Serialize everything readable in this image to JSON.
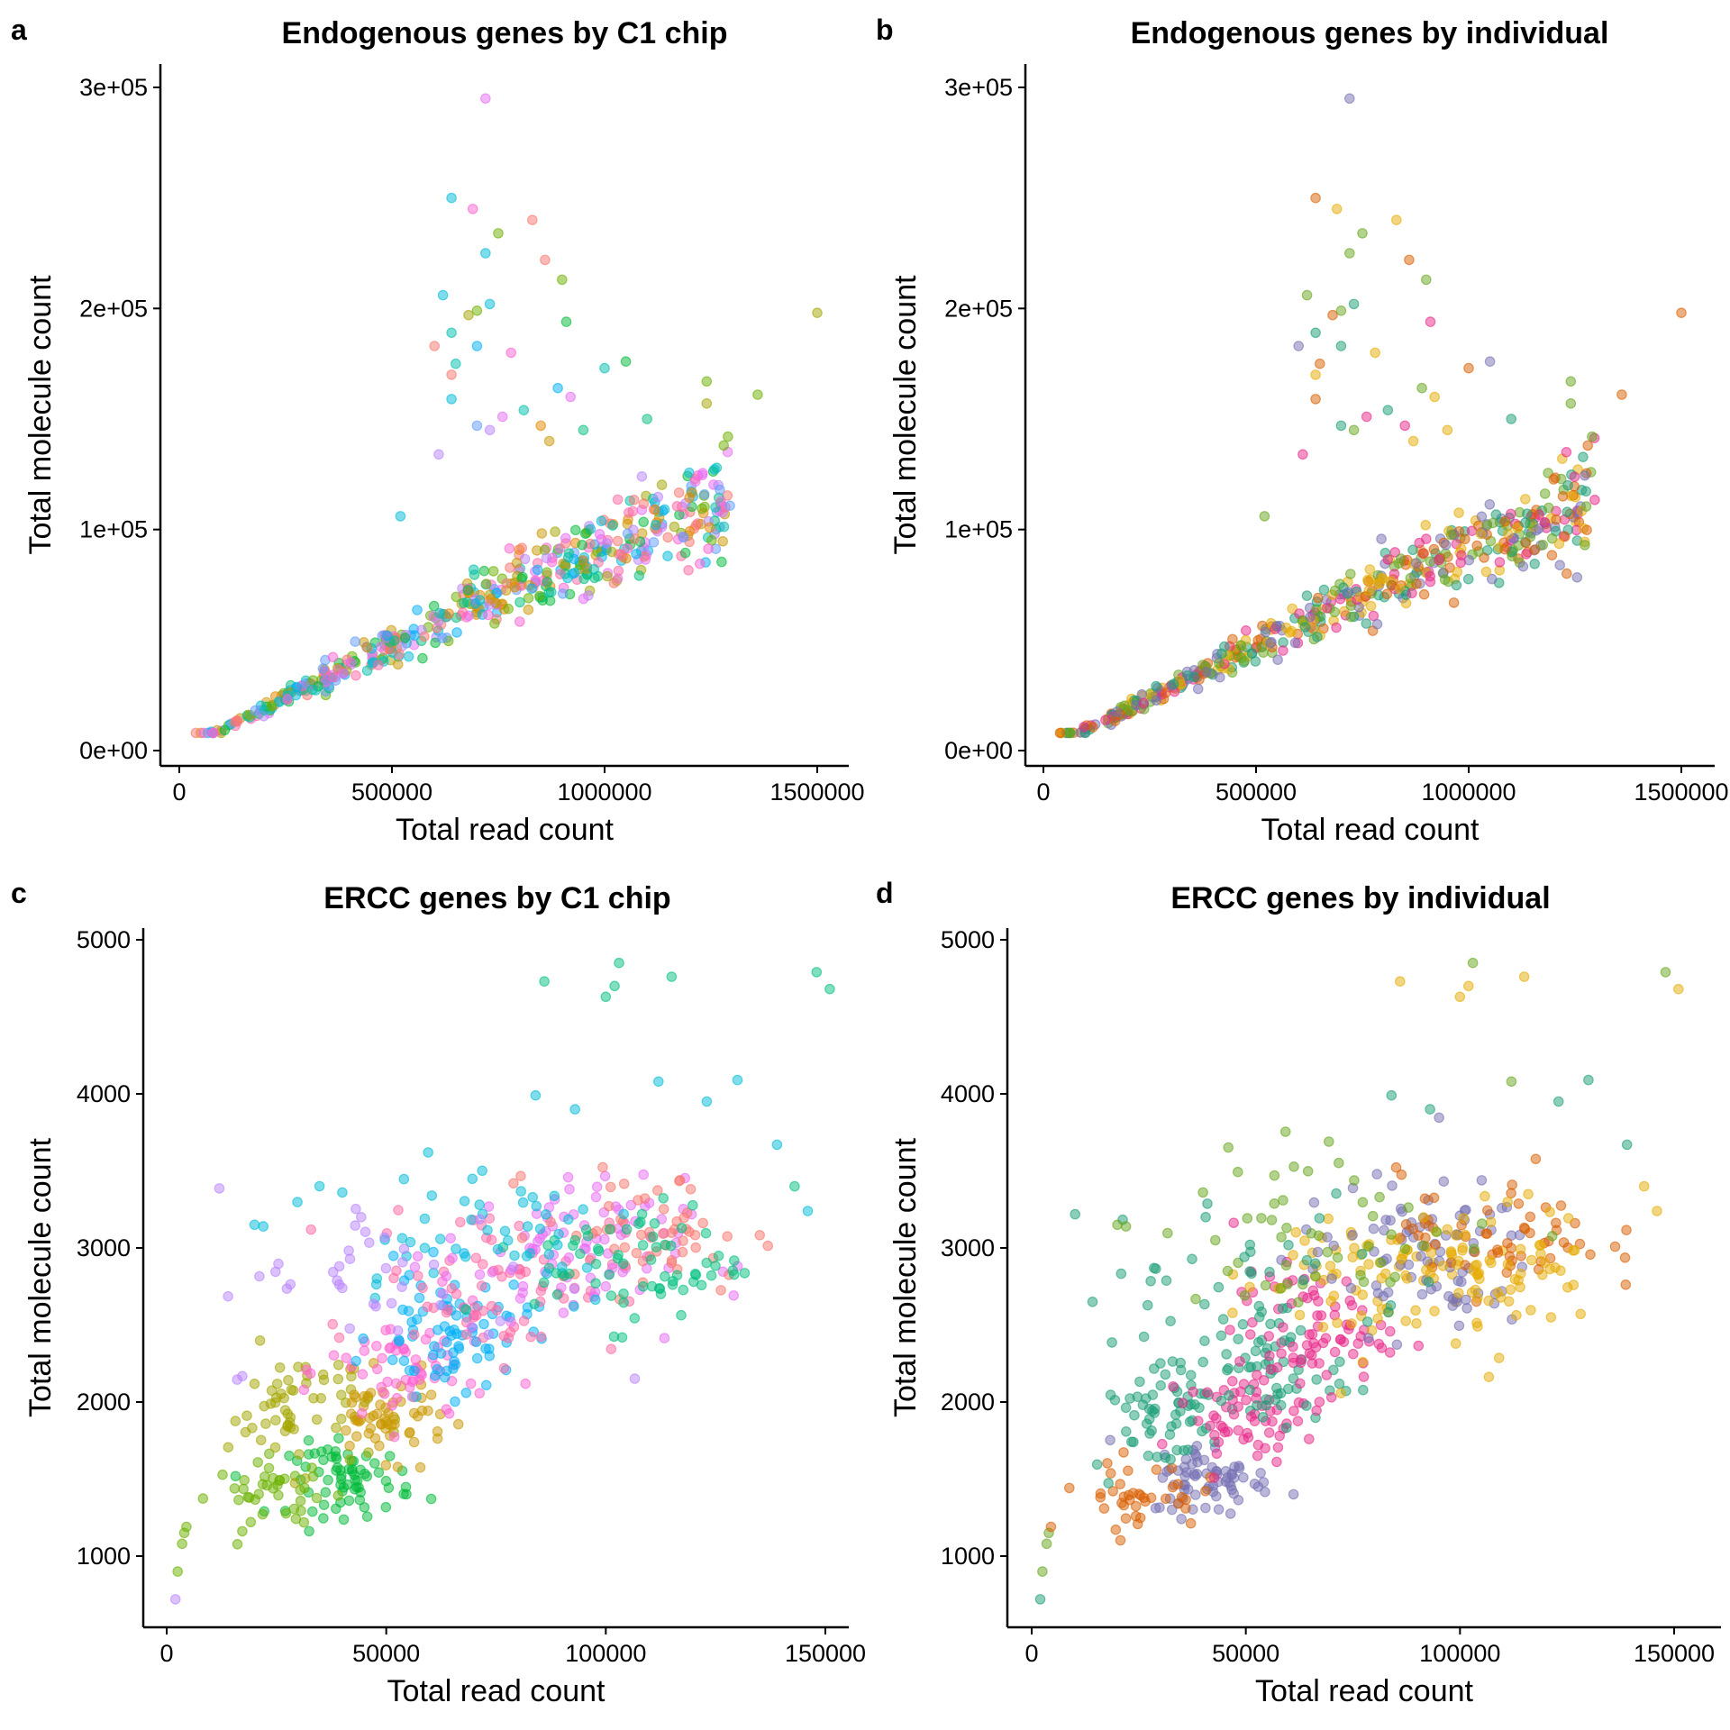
{
  "palettes": {
    "c1_chip": [
      "#F8766D",
      "#E58700",
      "#C99800",
      "#A3A500",
      "#6BB100",
      "#00BA38",
      "#00BF7D",
      "#00C0AF",
      "#00BCD8",
      "#00B0F6",
      "#619CFF",
      "#B983FF",
      "#E76BF3",
      "#FD61D1",
      "#FF67A4"
    ],
    "individual": [
      "#1B9E77",
      "#D95F02",
      "#7570B3",
      "#E7298A",
      "#66A61E",
      "#E6AB02"
    ]
  },
  "chart_data": [
    {
      "panel": "a",
      "type": "scatter",
      "title": "Endogenous genes by C1 chip",
      "xlabel": "Total read count",
      "ylabel": "Total molecule count",
      "xticks": [
        0,
        500000,
        1000000,
        1500000
      ],
      "xtick_labels": [
        "0",
        "500000",
        "1000000",
        "1500000"
      ],
      "yticks": [
        0,
        100000,
        200000,
        300000
      ],
      "ytick_labels": [
        "0e+00",
        "1e+05",
        "2e+05",
        "3e+05"
      ],
      "xlim": [
        -80000,
        1580000
      ],
      "ylim": [
        -7000,
        307000
      ],
      "color_by": "C1 chip",
      "palette": "c1_chip",
      "trend": {
        "slope": 0.095,
        "x_range": [
          30000,
          1300000
        ],
        "n": 520,
        "spread": 0.12
      },
      "outliers": [
        [
          720000,
          295000,
          12
        ],
        [
          640000,
          250000,
          8
        ],
        [
          690000,
          245000,
          13
        ],
        [
          830000,
          240000,
          0
        ],
        [
          750000,
          234000,
          4
        ],
        [
          720000,
          225000,
          8
        ],
        [
          860000,
          222000,
          0
        ],
        [
          900000,
          213000,
          4
        ],
        [
          620000,
          206000,
          8
        ],
        [
          700000,
          199000,
          4
        ],
        [
          730000,
          202000,
          8
        ],
        [
          680000,
          197000,
          3
        ],
        [
          910000,
          194000,
          5
        ],
        [
          1500000,
          198000,
          3
        ],
        [
          600000,
          183000,
          0
        ],
        [
          640000,
          189000,
          7
        ],
        [
          700000,
          183000,
          9
        ],
        [
          780000,
          180000,
          13
        ],
        [
          1050000,
          176000,
          5
        ],
        [
          1000000,
          173000,
          7
        ],
        [
          640000,
          170000,
          0
        ],
        [
          650000,
          175000,
          7
        ],
        [
          1240000,
          167000,
          4
        ],
        [
          1360000,
          161000,
          4
        ],
        [
          1240000,
          157000,
          3
        ],
        [
          920000,
          160000,
          12
        ],
        [
          890000,
          164000,
          9
        ],
        [
          640000,
          159000,
          8
        ],
        [
          700000,
          147000,
          10
        ],
        [
          730000,
          145000,
          11
        ],
        [
          760000,
          151000,
          12
        ],
        [
          850000,
          147000,
          1
        ],
        [
          1100000,
          150000,
          6
        ],
        [
          1290000,
          142000,
          4
        ],
        [
          1280000,
          138000,
          4
        ],
        [
          810000,
          154000,
          7
        ],
        [
          610000,
          134000,
          11
        ],
        [
          870000,
          140000,
          2
        ],
        [
          520000,
          106000,
          8
        ],
        [
          950000,
          145000,
          6
        ]
      ]
    },
    {
      "panel": "b",
      "type": "scatter",
      "title": "Endogenous genes by individual",
      "xlabel": "Total read count",
      "ylabel": "Total molecule count",
      "xticks": [
        0,
        500000,
        1000000,
        1500000
      ],
      "xtick_labels": [
        "0",
        "500000",
        "1000000",
        "1500000"
      ],
      "yticks": [
        0,
        100000,
        200000,
        300000
      ],
      "ytick_labels": [
        "0e+00",
        "1e+05",
        "2e+05",
        "3e+05"
      ],
      "xlim": [
        -80000,
        1580000
      ],
      "ylim": [
        -7000,
        307000
      ],
      "color_by": "individual",
      "palette": "individual",
      "trend": {
        "slope": 0.095,
        "x_range": [
          30000,
          1300000
        ],
        "n": 520,
        "spread": 0.12
      },
      "outliers": [
        [
          720000,
          295000,
          2
        ],
        [
          640000,
          250000,
          1
        ],
        [
          690000,
          245000,
          5
        ],
        [
          830000,
          240000,
          5
        ],
        [
          750000,
          234000,
          4
        ],
        [
          720000,
          225000,
          4
        ],
        [
          860000,
          222000,
          1
        ],
        [
          900000,
          213000,
          4
        ],
        [
          620000,
          206000,
          4
        ],
        [
          700000,
          199000,
          4
        ],
        [
          730000,
          202000,
          0
        ],
        [
          680000,
          197000,
          1
        ],
        [
          910000,
          194000,
          3
        ],
        [
          1500000,
          198000,
          1
        ],
        [
          600000,
          183000,
          2
        ],
        [
          640000,
          189000,
          0
        ],
        [
          700000,
          183000,
          0
        ],
        [
          780000,
          180000,
          5
        ],
        [
          1050000,
          176000,
          2
        ],
        [
          1000000,
          173000,
          1
        ],
        [
          640000,
          170000,
          5
        ],
        [
          650000,
          175000,
          1
        ],
        [
          1240000,
          167000,
          4
        ],
        [
          1360000,
          161000,
          1
        ],
        [
          1240000,
          157000,
          4
        ],
        [
          920000,
          160000,
          5
        ],
        [
          890000,
          164000,
          4
        ],
        [
          640000,
          159000,
          1
        ],
        [
          700000,
          147000,
          0
        ],
        [
          730000,
          145000,
          4
        ],
        [
          760000,
          151000,
          3
        ],
        [
          850000,
          147000,
          3
        ],
        [
          1100000,
          150000,
          0
        ],
        [
          1290000,
          142000,
          4
        ],
        [
          1280000,
          138000,
          1
        ],
        [
          810000,
          154000,
          0
        ],
        [
          610000,
          134000,
          3
        ],
        [
          870000,
          140000,
          5
        ],
        [
          520000,
          106000,
          4
        ],
        [
          950000,
          145000,
          5
        ]
      ]
    },
    {
      "panel": "c",
      "type": "scatter",
      "title": "ERCC genes by C1 chip",
      "xlabel": "Total read count",
      "ylabel": "Total molecule count",
      "xticks": [
        0,
        50000,
        100000,
        150000
      ],
      "xtick_labels": [
        "0",
        "50000",
        "100000",
        "150000"
      ],
      "yticks": [
        1000,
        2000,
        3000,
        4000,
        5000
      ],
      "ytick_labels": [
        "1000",
        "2000",
        "3000",
        "4000",
        "5000"
      ],
      "xlim": [
        -6000,
        158000
      ],
      "ylim": [
        520,
        5110
      ],
      "color_by": "C1 chip",
      "palette": "c1_chip",
      "clusters": [
        {
          "center": [
            42000,
            1500
          ],
          "sd": [
            7000,
            120
          ],
          "n": 70,
          "group": 5
        },
        {
          "center": [
            25000,
            1400
          ],
          "sd": [
            7000,
            110
          ],
          "n": 40,
          "group": 4
        },
        {
          "center": [
            30000,
            1950
          ],
          "sd": [
            8000,
            200
          ],
          "n": 60,
          "group": 3
        },
        {
          "center": [
            50000,
            1900
          ],
          "sd": [
            7000,
            130
          ],
          "n": 60,
          "group": 2
        },
        {
          "center": [
            55000,
            2200
          ],
          "sd": [
            9000,
            200
          ],
          "n": 60,
          "group": 13
        },
        {
          "center": [
            65000,
            2450
          ],
          "sd": [
            9000,
            200
          ],
          "n": 80,
          "group": 9
        },
        {
          "center": [
            75000,
            2800
          ],
          "sd": [
            14000,
            250
          ],
          "n": 70,
          "group": 14
        },
        {
          "center": [
            90000,
            2950
          ],
          "sd": [
            14000,
            250
          ],
          "n": 90,
          "group": 12
        },
        {
          "center": [
            110000,
            3100
          ],
          "sd": [
            12000,
            200
          ],
          "n": 60,
          "group": 0
        },
        {
          "center": [
            108000,
            2900
          ],
          "sd": [
            12000,
            200
          ],
          "n": 70,
          "group": 6
        },
        {
          "center": [
            70000,
            3150
          ],
          "sd": [
            20000,
            280
          ],
          "n": 50,
          "group": 8
        },
        {
          "center": [
            50000,
            2800
          ],
          "sd": [
            20000,
            300
          ],
          "n": 40,
          "group": 11
        }
      ],
      "outliers": [
        [
          2000,
          720,
          11
        ],
        [
          2500,
          900,
          4
        ],
        [
          3500,
          1080,
          4
        ],
        [
          4000,
          1150,
          4
        ],
        [
          4500,
          1190,
          4
        ],
        [
          86000,
          4730,
          6
        ],
        [
          103000,
          4850,
          6
        ],
        [
          102000,
          4700,
          6
        ],
        [
          100000,
          4630,
          6
        ],
        [
          115000,
          4760,
          6
        ],
        [
          148000,
          4790,
          6
        ],
        [
          151000,
          4680,
          6
        ],
        [
          84000,
          3990,
          8
        ],
        [
          93000,
          3900,
          8
        ],
        [
          112000,
          4080,
          8
        ],
        [
          123000,
          3950,
          8
        ],
        [
          130000,
          4090,
          8
        ],
        [
          139000,
          3670,
          8
        ],
        [
          143000,
          3400,
          6
        ],
        [
          146000,
          3240,
          8
        ],
        [
          20000,
          3150,
          8
        ],
        [
          22000,
          3140,
          8
        ],
        [
          40000,
          3360,
          8
        ]
      ]
    },
    {
      "panel": "d",
      "type": "scatter",
      "title": "ERCC genes by individual",
      "xlabel": "Total read count",
      "ylabel": "Total molecule count",
      "xticks": [
        0,
        50000,
        100000,
        150000
      ],
      "xtick_labels": [
        "0",
        "50000",
        "100000",
        "150000"
      ],
      "yticks": [
        1000,
        2000,
        3000,
        4000,
        5000
      ],
      "ytick_labels": [
        "1000",
        "2000",
        "3000",
        "4000",
        "5000"
      ],
      "xlim": [
        -6000,
        158000
      ],
      "ylim": [
        520,
        5110
      ],
      "color_by": "individual",
      "palette": "individual",
      "clusters": [
        {
          "center": [
            42000,
            1500
          ],
          "sd": [
            7000,
            120
          ],
          "n": 70,
          "group": 2
        },
        {
          "center": [
            25000,
            1400
          ],
          "sd": [
            7000,
            110
          ],
          "n": 40,
          "group": 1
        },
        {
          "center": [
            30000,
            1950
          ],
          "sd": [
            8000,
            200
          ],
          "n": 60,
          "group": 0
        },
        {
          "center": [
            50000,
            1900
          ],
          "sd": [
            7000,
            130
          ],
          "n": 60,
          "group": 3
        },
        {
          "center": [
            55000,
            2200
          ],
          "sd": [
            9000,
            200
          ],
          "n": 60,
          "group": 0
        },
        {
          "center": [
            65000,
            2450
          ],
          "sd": [
            9000,
            200
          ],
          "n": 80,
          "group": 3
        },
        {
          "center": [
            75000,
            2800
          ],
          "sd": [
            14000,
            250
          ],
          "n": 70,
          "group": 5
        },
        {
          "center": [
            90000,
            2950
          ],
          "sd": [
            14000,
            250
          ],
          "n": 90,
          "group": 2
        },
        {
          "center": [
            110000,
            3100
          ],
          "sd": [
            12000,
            200
          ],
          "n": 60,
          "group": 1
        },
        {
          "center": [
            108000,
            2900
          ],
          "sd": [
            12000,
            200
          ],
          "n": 70,
          "group": 5
        },
        {
          "center": [
            70000,
            3150
          ],
          "sd": [
            20000,
            280
          ],
          "n": 50,
          "group": 4
        },
        {
          "center": [
            50000,
            2800
          ],
          "sd": [
            20000,
            300
          ],
          "n": 40,
          "group": 0
        }
      ],
      "outliers": [
        [
          2000,
          720,
          0
        ],
        [
          2500,
          900,
          4
        ],
        [
          3500,
          1080,
          4
        ],
        [
          4000,
          1150,
          4
        ],
        [
          4500,
          1190,
          1
        ],
        [
          86000,
          4730,
          5
        ],
        [
          103000,
          4850,
          4
        ],
        [
          102000,
          4700,
          5
        ],
        [
          100000,
          4630,
          5
        ],
        [
          115000,
          4760,
          5
        ],
        [
          148000,
          4790,
          4
        ],
        [
          151000,
          4680,
          5
        ],
        [
          84000,
          3990,
          0
        ],
        [
          93000,
          3900,
          0
        ],
        [
          112000,
          4080,
          4
        ],
        [
          123000,
          3950,
          0
        ],
        [
          130000,
          4090,
          0
        ],
        [
          139000,
          3670,
          0
        ],
        [
          143000,
          3400,
          5
        ],
        [
          146000,
          3240,
          5
        ],
        [
          20000,
          3150,
          4
        ],
        [
          22000,
          3140,
          4
        ],
        [
          40000,
          3360,
          4
        ]
      ]
    }
  ]
}
